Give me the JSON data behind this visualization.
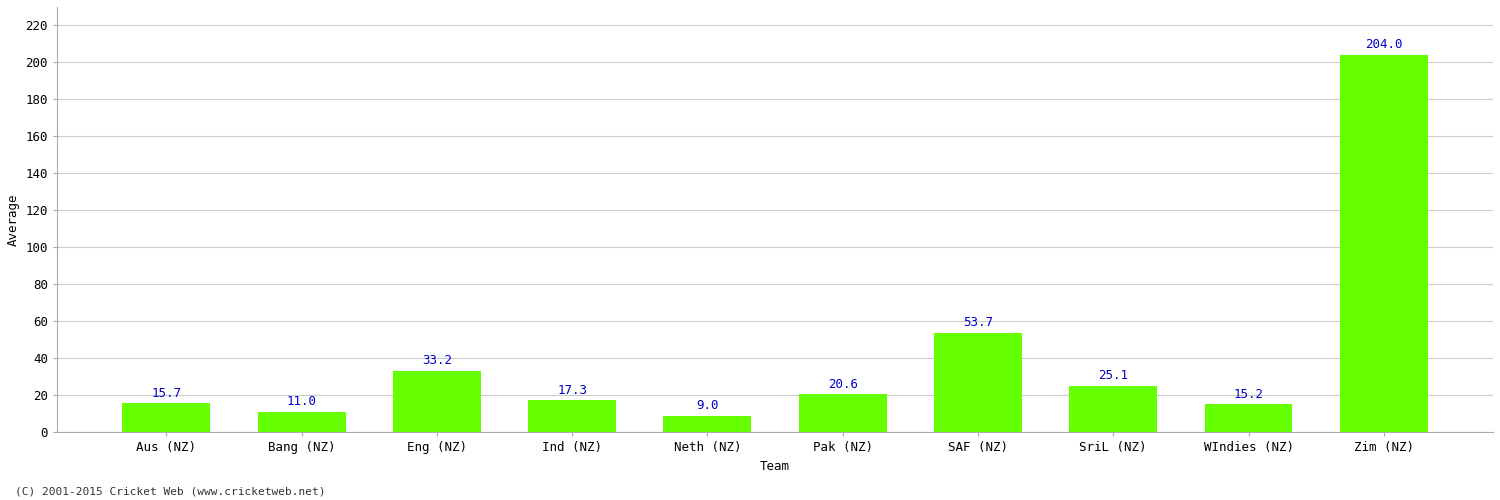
{
  "categories": [
    "Aus (NZ)",
    "Bang (NZ)",
    "Eng (NZ)",
    "Ind (NZ)",
    "Neth (NZ)",
    "Pak (NZ)",
    "SAF (NZ)",
    "SriL (NZ)",
    "WIndies (NZ)",
    "Zim (NZ)"
  ],
  "values": [
    15.7,
    11.0,
    33.2,
    17.3,
    9.0,
    20.6,
    53.7,
    25.1,
    15.2,
    204.0
  ],
  "bar_color": "#66ff00",
  "bar_edge_color": "#66ff00",
  "label_color": "#0000cc",
  "xlabel": "Team",
  "ylabel": "Average",
  "ylim": [
    0,
    230
  ],
  "yticks": [
    0,
    20,
    40,
    60,
    80,
    100,
    120,
    140,
    160,
    180,
    200,
    220
  ],
  "background_color": "#ffffff",
  "grid_color": "#cccccc",
  "footer": "(C) 2001-2015 Cricket Web (www.cricketweb.net)",
  "tick_fontsize": 9,
  "label_fontsize": 9,
  "value_label_fontsize": 9,
  "bar_width": 0.65
}
